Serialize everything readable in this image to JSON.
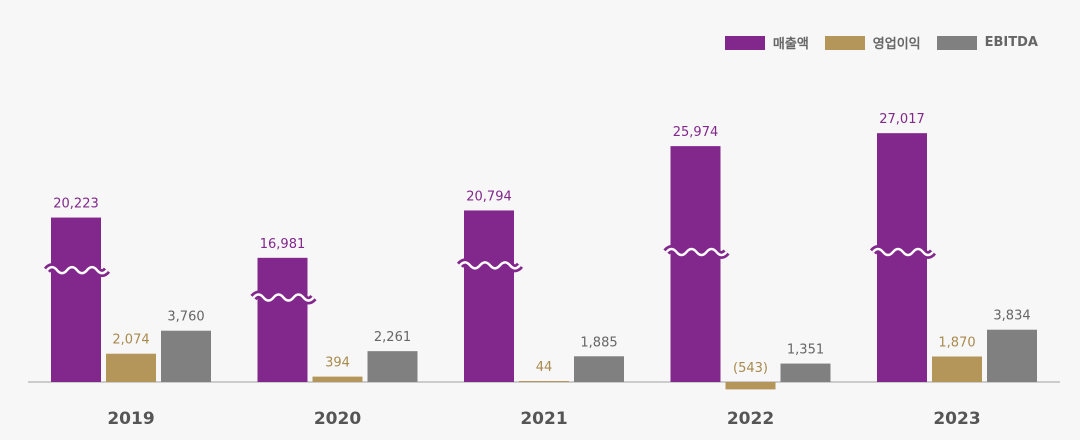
{
  "chart_data": {
    "type": "bar",
    "categories": [
      "2019",
      "2020",
      "2021",
      "2022",
      "2023"
    ],
    "series": [
      {
        "name": "매출액",
        "color": "#82288c",
        "values": [
          20223,
          16981,
          20794,
          25974,
          27017
        ],
        "labels": [
          "20,223",
          "16,981",
          "20,794",
          "25,974",
          "27,017"
        ],
        "axis_break": true
      },
      {
        "name": "영업이익",
        "color": "#b4965a",
        "values": [
          2074,
          394,
          44,
          -543,
          1870
        ],
        "labels": [
          "2,074",
          "394",
          "44",
          "(543)",
          "1,870"
        ]
      },
      {
        "name": "EBITDA",
        "color": "#808080",
        "values": [
          3760,
          2261,
          1885,
          1351,
          3834
        ],
        "labels": [
          "3,760",
          "2,261",
          "1,885",
          "1,351",
          "3,834"
        ]
      }
    ],
    "legend_position": "top-right",
    "grid": false
  }
}
